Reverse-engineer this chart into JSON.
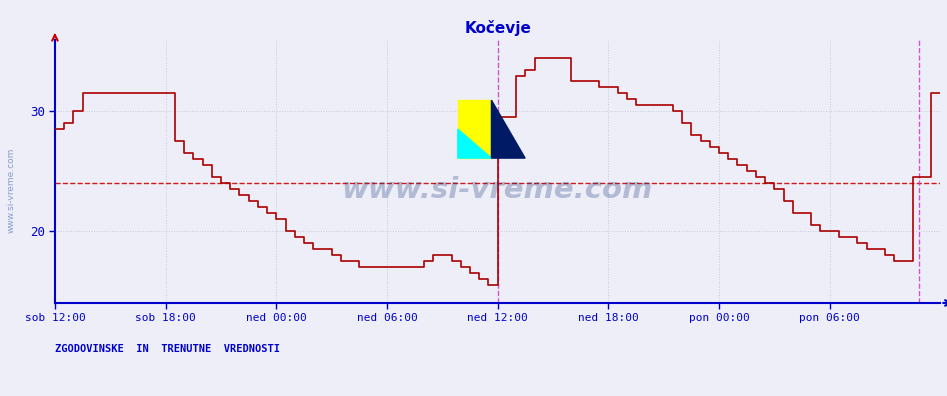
{
  "title": "Kočevje",
  "xlabel_ticks": [
    "sob 12:00",
    "sob 18:00",
    "ned 00:00",
    "ned 06:00",
    "ned 12:00",
    "ned 18:00",
    "pon 00:00",
    "pon 06:00"
  ],
  "ylabel_ticks": [
    20,
    30
  ],
  "ylim": [
    14.0,
    36.0
  ],
  "xlim": [
    0,
    576
  ],
  "avg_line_y": 24.0,
  "vline1_x": 288,
  "vline2_x": 562,
  "background_color": "#eeeef8",
  "plot_bg": "#eeeef8",
  "line_color": "#aa0000",
  "grid_color": "#c8c8dc",
  "axis_color": "#0000cc",
  "title_color": "#0000cc",
  "tick_label_color": "#0000cc",
  "footer_label": "ZGODOVINSKE  IN  TRENUTNE  VREDNOSTI",
  "watermark": "www.si-vreme.com",
  "watermark_color": "#1a3a7a",
  "x_tick_positions": [
    0,
    72,
    144,
    216,
    288,
    360,
    432,
    504
  ],
  "temperature_data": [
    [
      0,
      28.5
    ],
    [
      6,
      29.0
    ],
    [
      12,
      30.0
    ],
    [
      18,
      31.5
    ],
    [
      24,
      31.5
    ],
    [
      30,
      31.5
    ],
    [
      36,
      31.5
    ],
    [
      42,
      31.5
    ],
    [
      48,
      31.5
    ],
    [
      54,
      31.5
    ],
    [
      60,
      31.5
    ],
    [
      66,
      31.5
    ],
    [
      72,
      31.5
    ],
    [
      78,
      27.5
    ],
    [
      84,
      26.5
    ],
    [
      90,
      26.0
    ],
    [
      96,
      25.5
    ],
    [
      102,
      24.5
    ],
    [
      108,
      24.0
    ],
    [
      114,
      23.5
    ],
    [
      120,
      23.0
    ],
    [
      126,
      22.5
    ],
    [
      132,
      22.0
    ],
    [
      138,
      21.5
    ],
    [
      144,
      21.0
    ],
    [
      150,
      20.0
    ],
    [
      156,
      19.5
    ],
    [
      162,
      19.0
    ],
    [
      168,
      18.5
    ],
    [
      174,
      18.5
    ],
    [
      180,
      18.0
    ],
    [
      186,
      17.5
    ],
    [
      192,
      17.5
    ],
    [
      198,
      17.0
    ],
    [
      204,
      17.0
    ],
    [
      210,
      17.0
    ],
    [
      216,
      17.0
    ],
    [
      222,
      17.0
    ],
    [
      228,
      17.0
    ],
    [
      234,
      17.0
    ],
    [
      240,
      17.5
    ],
    [
      246,
      18.0
    ],
    [
      252,
      18.0
    ],
    [
      258,
      17.5
    ],
    [
      264,
      17.0
    ],
    [
      270,
      16.5
    ],
    [
      276,
      16.0
    ],
    [
      282,
      15.5
    ],
    [
      288,
      15.5
    ],
    [
      288,
      29.5
    ],
    [
      294,
      29.5
    ],
    [
      300,
      33.0
    ],
    [
      306,
      33.5
    ],
    [
      312,
      34.5
    ],
    [
      318,
      34.5
    ],
    [
      324,
      34.5
    ],
    [
      330,
      34.5
    ],
    [
      336,
      32.5
    ],
    [
      342,
      32.5
    ],
    [
      348,
      32.5
    ],
    [
      354,
      32.0
    ],
    [
      360,
      32.0
    ],
    [
      366,
      31.5
    ],
    [
      372,
      31.0
    ],
    [
      378,
      30.5
    ],
    [
      384,
      30.5
    ],
    [
      390,
      30.5
    ],
    [
      396,
      30.5
    ],
    [
      402,
      30.0
    ],
    [
      408,
      29.0
    ],
    [
      414,
      28.0
    ],
    [
      420,
      27.5
    ],
    [
      426,
      27.0
    ],
    [
      432,
      26.5
    ],
    [
      438,
      26.0
    ],
    [
      444,
      25.5
    ],
    [
      450,
      25.0
    ],
    [
      456,
      24.5
    ],
    [
      462,
      24.0
    ],
    [
      468,
      23.5
    ],
    [
      474,
      22.5
    ],
    [
      480,
      21.5
    ],
    [
      486,
      21.5
    ],
    [
      492,
      20.5
    ],
    [
      498,
      20.0
    ],
    [
      504,
      20.0
    ],
    [
      510,
      19.5
    ],
    [
      516,
      19.5
    ],
    [
      522,
      19.0
    ],
    [
      528,
      18.5
    ],
    [
      534,
      18.5
    ],
    [
      540,
      18.0
    ],
    [
      546,
      17.5
    ],
    [
      552,
      17.5
    ],
    [
      558,
      17.5
    ],
    [
      558,
      24.5
    ],
    [
      564,
      24.5
    ],
    [
      570,
      31.5
    ],
    [
      576,
      31.5
    ]
  ]
}
